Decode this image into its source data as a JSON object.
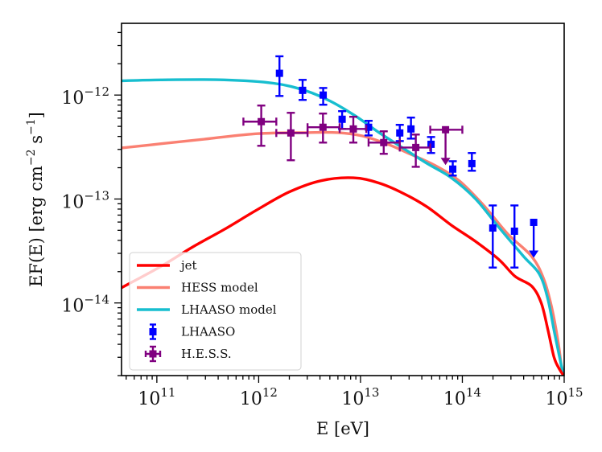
{
  "chart_data": {
    "type": "line",
    "title": "",
    "xlabel": "E [eV]",
    "ylabel": "EF(E) [erg cm^-2 s^-1]",
    "ylabel_parts": {
      "main": "EF(E) [erg cm",
      "exp1": "−2",
      "mid": " s",
      "exp2": "−1",
      "end": "]"
    },
    "xscale": "log",
    "yscale": "log",
    "xlim": [
      45000000000.0,
      1000000000000000.0
    ],
    "ylim": [
      2e-15,
      4.9e-12
    ],
    "grid": false,
    "legend_position": "bottom-left",
    "x_ticks": [
      {
        "value": 100000000000.0,
        "base": "10",
        "exp": "11"
      },
      {
        "value": 1000000000000.0,
        "base": "10",
        "exp": "12"
      },
      {
        "value": 10000000000000.0,
        "base": "10",
        "exp": "13"
      },
      {
        "value": 100000000000000.0,
        "base": "10",
        "exp": "14"
      },
      {
        "value": 1000000000000000.0,
        "base": "10",
        "exp": "15"
      }
    ],
    "y_ticks": [
      {
        "value": 1e-12,
        "base": "10",
        "exp": "−12"
      },
      {
        "value": 1e-13,
        "base": "10",
        "exp": "−13"
      },
      {
        "value": 1e-14,
        "base": "10",
        "exp": "−14"
      }
    ],
    "series": [
      {
        "name": "jet",
        "kind": "line",
        "color": "#ff0000",
        "x": [
          45000000000.0,
          110000000000.0,
          230000000000.0,
          460000000000.0,
          970000000000.0,
          2000000000000.0,
          4100000000000.0,
          8500000000000.0,
          15000000000000.0,
          26000000000000.0,
          45000000000000.0,
          78000000000000.0,
          135000000000000.0,
          230000000000000.0,
          330000000000000.0,
          480000000000000.0,
          595000000000000.0,
          690000000000000.0,
          795000000000000.0,
          900000000000000.0,
          990000000000000.0
        ],
        "y": [
          1.4e-14,
          2.25e-14,
          3.5e-14,
          5.1e-14,
          7.9e-14,
          1.17e-13,
          1.5e-13,
          1.6e-13,
          1.43e-13,
          1.14e-13,
          8.4e-14,
          5.6e-14,
          3.9e-14,
          2.6e-14,
          1.8e-14,
          1.45e-14,
          1e-14,
          5.6e-15,
          3e-15,
          2.3e-15,
          2e-15
        ]
      },
      {
        "name": "HESS model",
        "kind": "line",
        "color": "#fa8072",
        "x": [
          45000000000.0,
          110000000000.0,
          320000000000.0,
          970000000000.0,
          2900000000000.0,
          6000000000000.0,
          10300000000000.0,
          18000000000000.0,
          31000000000000.0,
          54000000000000.0,
          93000000000000.0,
          160000000000000.0,
          280000000000000.0,
          480000000000000.0,
          630000000000000.0,
          755000000000000.0,
          870000000000000.0,
          950000000000000.0
        ],
        "y": [
          3.1e-13,
          3.4e-13,
          3.8e-13,
          4.25e-13,
          4.35e-13,
          4.35e-13,
          4.05e-13,
          3.4e-13,
          2.7e-13,
          2.1e-13,
          1.5e-13,
          8.8e-14,
          4.6e-14,
          2.8e-14,
          1.7e-14,
          9e-15,
          4.3e-15,
          2.2e-15
        ]
      },
      {
        "name": "LHAASO model",
        "kind": "line",
        "color": "#17becf",
        "x": [
          45000000000.0,
          110000000000.0,
          460000000000.0,
          1400000000000.0,
          2900000000000.0,
          5100000000000.0,
          8900000000000.0,
          15000000000000.0,
          26000000000000.0,
          45000000000000.0,
          78000000000000.0,
          135000000000000.0,
          230000000000000.0,
          400000000000000.0,
          570000000000000.0,
          690000000000000.0,
          800000000000000.0,
          930000000000000.0,
          1000000000000000.0
        ],
        "y": [
          1.37e-12,
          1.4e-12,
          1.4e-12,
          1.3e-12,
          1.1e-12,
          8.7e-13,
          6.3e-13,
          4.4e-13,
          3.1e-13,
          2.2e-13,
          1.6e-13,
          1e-13,
          5.3e-14,
          2.8e-14,
          1.9e-14,
          1.1e-14,
          5.3e-15,
          2.6e-15,
          2e-15
        ]
      },
      {
        "name": "LHAASO",
        "kind": "errorbar",
        "color": "#0000ff",
        "marker": "square",
        "points": [
          {
            "x": 1600000000000.0,
            "y": 1.62e-12,
            "y_hi": 2.36e-12,
            "y_lo": 9.8e-13
          },
          {
            "x": 2700000000000.0,
            "y": 1.11e-12,
            "y_hi": 1.4e-12,
            "y_lo": 8.98e-13
          },
          {
            "x": 4300000000000.0,
            "y": 1e-12,
            "y_hi": 1.17e-12,
            "y_lo": 8.07e-13
          },
          {
            "x": 6600000000000.0,
            "y": 5.85e-13,
            "y_hi": 7e-13,
            "y_lo": 4.72e-13
          },
          {
            "x": 12000000000000.0,
            "y": 4.9e-13,
            "y_hi": 5.65e-13,
            "y_lo": 4.09e-13
          },
          {
            "x": 24300000000000.0,
            "y": 4.32e-13,
            "y_hi": 5.17e-13,
            "y_lo": 3.61e-13
          },
          {
            "x": 31300000000000.0,
            "y": 4.72e-13,
            "y_hi": 6.07e-13,
            "y_lo": 3.81e-13
          },
          {
            "x": 49300000000000.0,
            "y": 3.36e-13,
            "y_hi": 3.95e-13,
            "y_lo": 2.77e-13
          },
          {
            "x": 80500000000000.0,
            "y": 1.94e-13,
            "y_hi": 2.31e-13,
            "y_lo": 1.68e-13
          },
          {
            "x": 124000000000000.0,
            "y": 2.19e-13,
            "y_hi": 2.77e-13,
            "y_lo": 1.87e-13
          },
          {
            "x": 199000000000000.0,
            "y": 5.26e-14,
            "y_hi": 8.67e-14,
            "y_lo": 2.19e-14
          },
          {
            "x": 325000000000000.0,
            "y": 4.9e-14,
            "y_hi": 8.67e-14,
            "y_lo": 2.19e-14
          },
          {
            "x": 502000000000000.0,
            "y": 5.96e-14,
            "upper_limit": true
          }
        ]
      },
      {
        "name": "H.E.S.S.",
        "kind": "errorbar",
        "color": "#800080",
        "marker": "square",
        "points": [
          {
            "x": 1060000000000.0,
            "x_lo": 708000000000.0,
            "x_hi": 1490000000000.0,
            "y": 5.55e-13,
            "y_hi": 7.93e-13,
            "y_lo": 3.25e-13
          },
          {
            "x": 2070000000000.0,
            "x_lo": 1490000000000.0,
            "x_hi": 3020000000000.0,
            "y": 4.32e-13,
            "y_hi": 6.75e-13,
            "y_lo": 2.36e-13
          },
          {
            "x": 4280000000000.0,
            "x_lo": 3020000000000.0,
            "x_hi": 6240000000000.0,
            "y": 4.9e-13,
            "y_hi": 6.64e-13,
            "y_lo": 3.49e-13
          },
          {
            "x": 8500000000000.0,
            "x_lo": 6240000000000.0,
            "x_hi": 11400000000000.0,
            "y": 4.72e-13,
            "y_hi": 6.18e-13,
            "y_lo": 3.49e-13
          },
          {
            "x": 16900000000000.0,
            "x_lo": 12000000000000.0,
            "x_hi": 24300000000000.0,
            "y": 3.49e-13,
            "y_hi": 4.48e-13,
            "y_lo": 2.72e-13
          },
          {
            "x": 34900000000000.0,
            "x_lo": 24300000000000.0,
            "x_hi": 48400000000000.0,
            "y": 3.13e-13,
            "y_hi": 4.17e-13,
            "y_lo": 2.04e-13
          },
          {
            "x": 68400000000000.0,
            "x_lo": 48400000000000.0,
            "x_hi": 100000000000000.0,
            "y": 4.64e-13,
            "upper_limit": true
          }
        ]
      }
    ],
    "legend": [
      {
        "label": "jet",
        "kind": "line",
        "color": "#ff0000"
      },
      {
        "label": "HESS model",
        "kind": "line",
        "color": "#fa8072"
      },
      {
        "label": "LHAASO model",
        "kind": "line",
        "color": "#17becf"
      },
      {
        "label": "LHAASO",
        "kind": "errorbar",
        "color": "#0000ff"
      },
      {
        "label": "H.E.S.S.",
        "kind": "errorbar-x",
        "color": "#800080"
      }
    ]
  }
}
